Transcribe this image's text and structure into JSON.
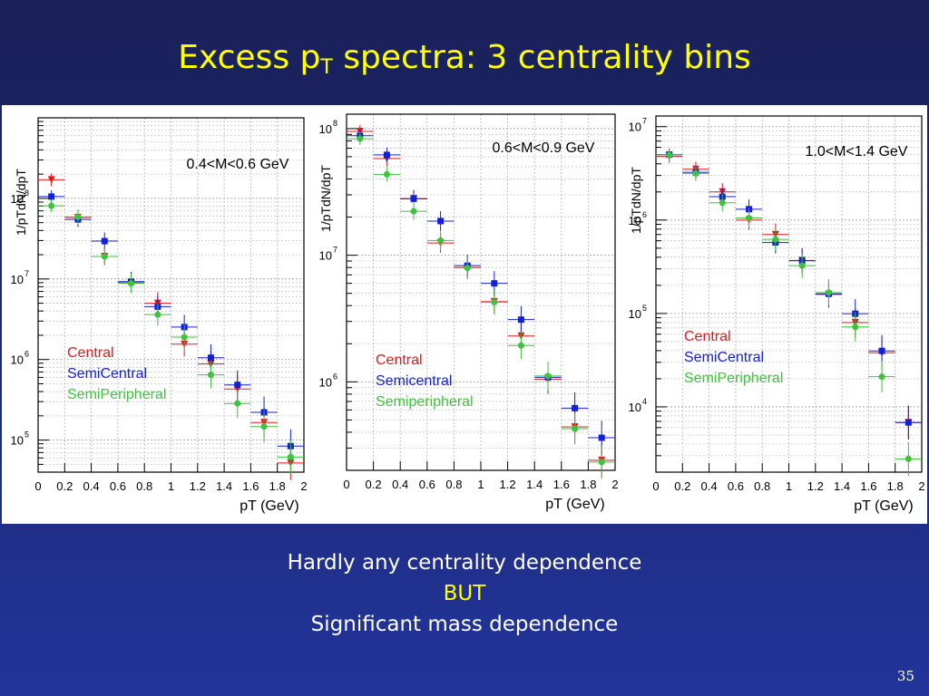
{
  "slide": {
    "title_main": "Excess p",
    "title_sub": "T",
    "title_rest": " spectra: 3 centrality bins",
    "caption_line1": "Hardly any centrality dependence",
    "caption_line2": "BUT",
    "caption_line3": "Significant mass dependence",
    "page_number": "35"
  },
  "colors": {
    "central": "#e8151b",
    "semicentral": "#1420d8",
    "semiperipheral": "#3cc43c",
    "title": "#ffff00"
  },
  "chart_data": [
    {
      "type": "scatter",
      "title": "0.4<M<0.6 GeV",
      "ylabel": "1/pTdN/dpT",
      "xlabel": "pT (GeV)",
      "xlim": [
        0,
        2
      ],
      "ylim": [
        40000,
        1000000000
      ],
      "log_y": true,
      "x_ticks": [
        "0",
        "0.2",
        "0.4",
        "0.6",
        "0.8",
        "1",
        "1.2",
        "1.4",
        "1.6",
        "1.8",
        "2"
      ],
      "y_ticks": [
        {
          "v": 100000,
          "base": "10",
          "exp": "5"
        },
        {
          "v": 1000000,
          "base": "10",
          "exp": "6"
        },
        {
          "v": 10000000,
          "base": "10",
          "exp": "7"
        },
        {
          "v": 100000000,
          "base": "10",
          "exp": "8"
        }
      ],
      "legend": [
        "Central",
        "SemiCentral",
        "SemiPeripheral"
      ],
      "series": [
        {
          "name": "Central",
          "x": [
            0.1,
            0.3,
            0.5,
            0.7,
            0.9,
            1.1,
            1.3,
            1.5,
            1.7,
            1.9
          ],
          "y": [
            170000000,
            58000000,
            19000000,
            9000000,
            5000000,
            1550000,
            880000,
            430000,
            165000,
            52000
          ]
        },
        {
          "name": "SemiCentral",
          "x": [
            0.1,
            0.3,
            0.5,
            0.7,
            0.9,
            1.1,
            1.3,
            1.5,
            1.7,
            1.9
          ],
          "y": [
            100000000,
            52000000,
            28000000,
            8800000,
            4300000,
            2400000,
            1000000,
            460000,
            210000,
            80000
          ]
        },
        {
          "name": "SemiPeripheral",
          "x": [
            0.1,
            0.3,
            0.5,
            0.7,
            0.9,
            1.1,
            1.3,
            1.5,
            1.7,
            1.9
          ],
          "y": [
            85000000,
            62000000,
            20000000,
            9300000,
            3800000,
            2000000,
            680000,
            300000,
            155000,
            65000
          ]
        }
      ]
    },
    {
      "type": "scatter",
      "title": "0.6<M<0.9 GeV",
      "ylabel": "1/pTdN/dpT",
      "xlabel": "pT (GeV)",
      "xlim": [
        0,
        2
      ],
      "ylim": [
        200000,
        130000000
      ],
      "log_y": true,
      "x_ticks": [
        "0",
        "0.2",
        "0.4",
        "0.6",
        "0.8",
        "1",
        "1.2",
        "1.4",
        "1.6",
        "1.8",
        "2"
      ],
      "y_ticks": [
        {
          "v": 1000000,
          "base": "10",
          "exp": "6"
        },
        {
          "v": 10000000,
          "base": "10",
          "exp": "7"
        },
        {
          "v": 100000000,
          "base": "10",
          "exp": "8"
        }
      ],
      "legend": [
        "Central",
        "Semicentral",
        "Semiperipheral"
      ],
      "series": [
        {
          "name": "Central",
          "x": [
            0.1,
            0.3,
            0.5,
            0.7,
            0.9,
            1.1,
            1.3,
            1.5,
            1.7,
            1.9
          ],
          "y": [
            95000000,
            58000000,
            28000000,
            12500000,
            8000000,
            4300000,
            2300000,
            1050000,
            440000,
            240000
          ]
        },
        {
          "name": "Semicentral",
          "x": [
            0.1,
            0.3,
            0.5,
            0.7,
            0.9,
            1.1,
            1.3,
            1.5,
            1.7,
            1.9
          ],
          "y": [
            85000000,
            60000000,
            27000000,
            18000000,
            8000000,
            5800000,
            3000000,
            1050000,
            600000,
            350000
          ]
        },
        {
          "name": "Semiperipheral",
          "x": [
            0.1,
            0.3,
            0.5,
            0.7,
            0.9,
            1.1,
            1.3,
            1.5,
            1.7,
            1.9
          ],
          "y": [
            86000000,
            45000000,
            23000000,
            13500000,
            8200000,
            4400000,
            2000000,
            1150000,
            440000,
            240000
          ]
        }
      ]
    },
    {
      "type": "scatter",
      "title": "1.0<M<1.4 GeV",
      "ylabel": "1/pTdN/dpT",
      "xlabel": "pT (GeV)",
      "xlim": [
        0,
        2
      ],
      "ylim": [
        2000,
        13000000
      ],
      "log_y": true,
      "x_ticks": [
        "0",
        "0.2",
        "0.4",
        "0.6",
        "0.8",
        "1",
        "1.2",
        "1.4",
        "1.6",
        "1.8",
        "2"
      ],
      "y_ticks": [
        {
          "v": 10000,
          "base": "10",
          "exp": "4"
        },
        {
          "v": 100000,
          "base": "10",
          "exp": "5"
        },
        {
          "v": 1000000,
          "base": "10",
          "exp": "6"
        },
        {
          "v": 10000000,
          "base": "10",
          "exp": "7"
        }
      ],
      "legend": [
        "Central",
        "SemiCentral",
        "SemiPeripheral"
      ],
      "series": [
        {
          "name": "Central",
          "x": [
            0.1,
            0.3,
            0.5,
            0.7,
            0.9,
            1.1,
            1.3,
            1.5,
            1.7,
            1.9
          ],
          "y": [
            4800000,
            3500000,
            2000000,
            1000000,
            700000,
            370000,
            160000,
            80000,
            38000,
            6800
          ]
        },
        {
          "name": "SemiCentral",
          "x": [
            0.1,
            0.3,
            0.5,
            0.7,
            0.9,
            1.1,
            1.3,
            1.5,
            1.7,
            1.9
          ],
          "y": [
            4800000,
            3100000,
            1700000,
            1250000,
            550000,
            350000,
            155000,
            95000,
            38000,
            6500
          ]
        },
        {
          "name": "SemiPeripheral",
          "x": [
            0.1,
            0.3,
            0.5,
            0.7,
            0.9,
            1.1,
            1.3,
            1.5,
            1.7,
            1.9
          ],
          "y": [
            5200000,
            3300000,
            1600000,
            1100000,
            650000,
            340000,
            175000,
            75000,
            22000,
            2900
          ]
        }
      ]
    }
  ]
}
